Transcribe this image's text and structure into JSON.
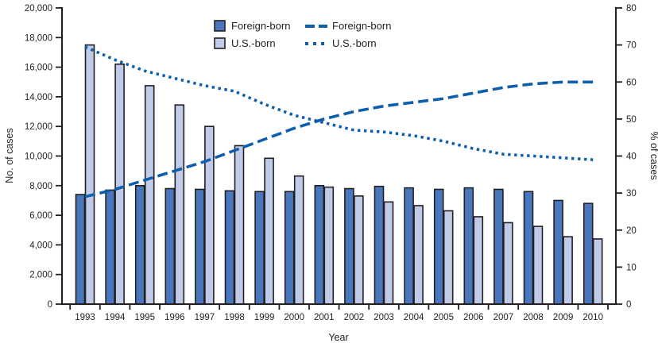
{
  "chart_data": {
    "type": "combo-bar-line",
    "categories": [
      "1993",
      "1994",
      "1995",
      "1996",
      "1997",
      "1998",
      "1999",
      "2000",
      "2001",
      "2002",
      "2003",
      "2004",
      "2005",
      "2006",
      "2007",
      "2008",
      "2009",
      "2010"
    ],
    "bar_series": [
      {
        "name": "Foreign-born",
        "axis": "left",
        "color": "#4a77bb",
        "values": [
          7400,
          7700,
          8000,
          7800,
          7750,
          7650,
          7600,
          7600,
          8000,
          7800,
          7950,
          7850,
          7750,
          7850,
          7750,
          7600,
          7000,
          6800
        ]
      },
      {
        "name": "U.S.-born",
        "axis": "left",
        "color": "#c0cbe9",
        "values": [
          17500,
          16200,
          14750,
          13450,
          12000,
          10700,
          9850,
          8650,
          7900,
          7300,
          6900,
          6650,
          6300,
          5900,
          5500,
          5250,
          4550,
          4400
        ]
      }
    ],
    "line_series": [
      {
        "name": "Foreign-born",
        "axis": "right",
        "style": "dashed",
        "color": "#0d5fad",
        "values": [
          29,
          31,
          33.5,
          36,
          38.5,
          41.5,
          44.5,
          47.5,
          50,
          52,
          53.5,
          54.5,
          55.5,
          57,
          58.5,
          59.5,
          60,
          60
        ]
      },
      {
        "name": "U.S.-born",
        "axis": "right",
        "style": "dotted",
        "color": "#0d5fad",
        "values": [
          69.5,
          66,
          63,
          61,
          59,
          57.5,
          54,
          51,
          49,
          47,
          46.5,
          45.5,
          44,
          42,
          40.5,
          40,
          39.5,
          39
        ]
      }
    ],
    "xlabel": "Year",
    "ylabel_left": "No. of cases",
    "ylabel_right": "% of cases",
    "ylim_left": [
      0,
      20000
    ],
    "yticks_left": [
      "0",
      "2,000",
      "4,000",
      "6,000",
      "8,000",
      "10,000",
      "12,000",
      "14,000",
      "16,000",
      "18,000",
      "20,000"
    ],
    "ylim_right": [
      0,
      80
    ],
    "yticks_right": [
      "0",
      "10",
      "20",
      "30",
      "40",
      "50",
      "60",
      "70",
      "80"
    ],
    "grid": false,
    "legend_position": "top-center",
    "axis_color": "#231f20",
    "bar_outline_color": "#231f20"
  }
}
